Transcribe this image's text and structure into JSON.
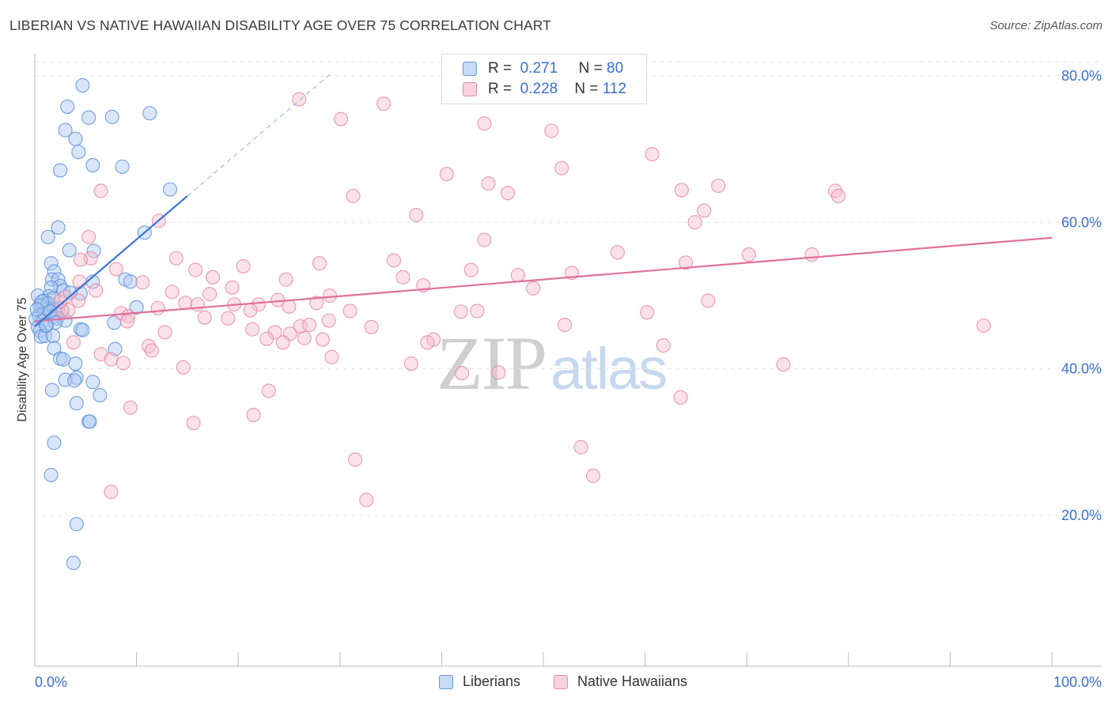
{
  "title": "LIBERIAN VS NATIVE HAWAIIAN DISABILITY AGE OVER 75 CORRELATION CHART",
  "source": "Source: ZipAtlas.com",
  "watermark": {
    "zip": "ZIP",
    "atlas": "atlas"
  },
  "legend_top": [
    {
      "r_label": "R =",
      "r_value": "0.271",
      "n_label": "N =",
      "n_value": "80"
    },
    {
      "r_label": "R =",
      "r_value": "0.228",
      "n_label": "N =",
      "n_value": "112"
    }
  ],
  "legend_bottom": [
    "Liberians",
    "Native Hawaiians"
  ],
  "colors": {
    "liberian_fill": "#aac8f2",
    "liberian_stroke": "#5a8fd8",
    "liberian_line": "#3b76d0",
    "hawaiian_fill": "#f6bccd",
    "hawaiian_stroke": "#e58aa8",
    "hawaiian_line": "#e0709a",
    "tick_text": "#3a6fd0",
    "grid": "#e5e5e5"
  },
  "chart_data": {
    "type": "scatter",
    "title": "LIBERIAN VS NATIVE HAWAIIAN DISABILITY AGE OVER 75 CORRELATION CHART",
    "xlabel": "",
    "ylabel": "Disability Age Over 75",
    "xlim": [
      0,
      100
    ],
    "ylim": [
      0,
      85
    ],
    "x_tick_labels": [
      "0.0%",
      "100.0%"
    ],
    "y_ticks": [
      20,
      40,
      60,
      80
    ],
    "y_tick_labels": [
      "20.0%",
      "40.0%",
      "60.0%",
      "80.0%"
    ],
    "grid": true,
    "series": [
      {
        "name": "Liberians",
        "r": 0.271,
        "n": 80,
        "trend": {
          "x": [
            0,
            15
          ],
          "y": [
            45.8,
            63.6
          ]
        },
        "trend_extended": {
          "x": [
            15,
            29
          ],
          "y": [
            63.6,
            80.2
          ]
        },
        "points": [
          [
            4.7,
            78.7
          ],
          [
            3.2,
            75.8
          ],
          [
            5.3,
            74.3
          ],
          [
            7.6,
            74.4
          ],
          [
            11.3,
            74.9
          ],
          [
            3.0,
            72.6
          ],
          [
            4.0,
            71.4
          ],
          [
            4.3,
            69.6
          ],
          [
            5.7,
            67.8
          ],
          [
            8.6,
            67.6
          ],
          [
            2.5,
            67.1
          ],
          [
            13.3,
            64.5
          ],
          [
            2.3,
            59.3
          ],
          [
            1.3,
            58.0
          ],
          [
            10.8,
            58.6
          ],
          [
            3.4,
            56.2
          ],
          [
            5.8,
            56.1
          ],
          [
            1.6,
            54.4
          ],
          [
            1.9,
            53.3
          ],
          [
            1.7,
            52.2
          ],
          [
            2.3,
            52.2
          ],
          [
            5.7,
            51.9
          ],
          [
            8.9,
            52.2
          ],
          [
            9.4,
            51.9
          ],
          [
            2.5,
            51.3
          ],
          [
            1.6,
            51.1
          ],
          [
            2.8,
            50.7
          ],
          [
            4.5,
            50.3
          ],
          [
            1.4,
            49.9
          ],
          [
            0.3,
            50.0
          ],
          [
            1.8,
            49.6
          ],
          [
            0.9,
            49.3
          ],
          [
            0.6,
            48.7
          ],
          [
            2.3,
            48.3
          ],
          [
            1.2,
            48.2
          ],
          [
            0.5,
            48.6
          ],
          [
            1.9,
            48.1
          ],
          [
            10.0,
            48.4
          ],
          [
            0.4,
            47.3
          ],
          [
            1.8,
            47.1
          ],
          [
            2.2,
            46.9
          ],
          [
            3.0,
            46.6
          ],
          [
            0.1,
            46.8
          ],
          [
            0.8,
            46.6
          ],
          [
            0.3,
            45.7
          ],
          [
            1.2,
            46.0
          ],
          [
            0.5,
            45.2
          ],
          [
            7.8,
            46.3
          ],
          [
            4.5,
            45.4
          ],
          [
            4.7,
            45.3
          ],
          [
            0.6,
            44.4
          ],
          [
            1.0,
            44.5
          ],
          [
            1.8,
            44.5
          ],
          [
            1.9,
            42.8
          ],
          [
            7.9,
            42.7
          ],
          [
            2.5,
            41.4
          ],
          [
            2.8,
            41.3
          ],
          [
            4.0,
            40.7
          ],
          [
            4.1,
            38.8
          ],
          [
            3.0,
            38.5
          ],
          [
            3.9,
            38.4
          ],
          [
            5.7,
            38.2
          ],
          [
            1.7,
            37.1
          ],
          [
            6.4,
            36.4
          ],
          [
            4.1,
            35.3
          ],
          [
            5.3,
            32.8
          ],
          [
            5.4,
            32.8
          ],
          [
            1.9,
            29.9
          ],
          [
            1.6,
            25.5
          ],
          [
            4.1,
            18.8
          ],
          [
            3.8,
            13.5
          ],
          [
            0.9,
            47.6
          ],
          [
            1.3,
            48.9
          ],
          [
            2.0,
            46.3
          ],
          [
            3.5,
            50.4
          ],
          [
            0.7,
            49.2
          ],
          [
            2.7,
            48.0
          ],
          [
            1.1,
            45.9
          ],
          [
            0.2,
            48.1
          ],
          [
            1.5,
            47.8
          ]
        ]
      },
      {
        "name": "Native Hawaiians",
        "r": 0.228,
        "n": 112,
        "trend": {
          "x": [
            0,
            100
          ],
          "y": [
            46.5,
            57.9
          ]
        },
        "points": [
          [
            26.0,
            76.8
          ],
          [
            34.3,
            76.2
          ],
          [
            30.1,
            74.1
          ],
          [
            44.2,
            73.5
          ],
          [
            50.8,
            72.5
          ],
          [
            60.7,
            69.3
          ],
          [
            51.8,
            67.4
          ],
          [
            40.5,
            66.6
          ],
          [
            44.6,
            65.3
          ],
          [
            46.5,
            64.0
          ],
          [
            31.3,
            63.6
          ],
          [
            63.6,
            64.4
          ],
          [
            67.2,
            65.0
          ],
          [
            78.7,
            64.3
          ],
          [
            79.0,
            63.6
          ],
          [
            6.5,
            64.3
          ],
          [
            65.8,
            61.6
          ],
          [
            37.5,
            61.0
          ],
          [
            12.2,
            60.2
          ],
          [
            64.9,
            60.0
          ],
          [
            5.3,
            58.0
          ],
          [
            44.2,
            57.6
          ],
          [
            57.3,
            55.9
          ],
          [
            70.2,
            55.6
          ],
          [
            76.4,
            55.6
          ],
          [
            5.5,
            55.1
          ],
          [
            13.9,
            55.1
          ],
          [
            4.5,
            54.9
          ],
          [
            35.3,
            54.8
          ],
          [
            28.0,
            54.4
          ],
          [
            64.0,
            54.5
          ],
          [
            20.5,
            54.0
          ],
          [
            15.8,
            53.5
          ],
          [
            42.9,
            53.5
          ],
          [
            8.0,
            53.6
          ],
          [
            47.5,
            52.8
          ],
          [
            52.8,
            53.1
          ],
          [
            17.5,
            52.5
          ],
          [
            24.7,
            52.2
          ],
          [
            36.2,
            52.5
          ],
          [
            10.6,
            51.8
          ],
          [
            4.4,
            51.9
          ],
          [
            38.2,
            51.4
          ],
          [
            19.4,
            51.1
          ],
          [
            49.0,
            51.0
          ],
          [
            13.5,
            50.5
          ],
          [
            17.2,
            50.2
          ],
          [
            29.0,
            50.0
          ],
          [
            3.0,
            49.8
          ],
          [
            4.3,
            49.3
          ],
          [
            23.9,
            49.4
          ],
          [
            27.7,
            49.0
          ],
          [
            14.8,
            49.0
          ],
          [
            16.0,
            48.8
          ],
          [
            19.6,
            48.8
          ],
          [
            22.0,
            48.8
          ],
          [
            25.0,
            48.5
          ],
          [
            66.2,
            49.3
          ],
          [
            12.1,
            48.3
          ],
          [
            8.5,
            47.6
          ],
          [
            21.2,
            48.0
          ],
          [
            31.0,
            47.9
          ],
          [
            41.9,
            47.8
          ],
          [
            43.5,
            47.9
          ],
          [
            60.2,
            47.7
          ],
          [
            2.7,
            47.9
          ],
          [
            3.3,
            48.0
          ],
          [
            9.2,
            47.2
          ],
          [
            16.7,
            47.0
          ],
          [
            19.0,
            46.9
          ],
          [
            28.9,
            46.6
          ],
          [
            9.1,
            46.5
          ],
          [
            26.1,
            45.8
          ],
          [
            27.0,
            46.0
          ],
          [
            33.1,
            45.7
          ],
          [
            52.1,
            46.0
          ],
          [
            93.3,
            45.9
          ],
          [
            21.4,
            45.4
          ],
          [
            12.8,
            45.0
          ],
          [
            23.6,
            45.0
          ],
          [
            25.1,
            44.8
          ],
          [
            26.5,
            44.2
          ],
          [
            28.3,
            44.0
          ],
          [
            22.8,
            44.1
          ],
          [
            24.4,
            43.6
          ],
          [
            39.2,
            44.0
          ],
          [
            38.6,
            43.6
          ],
          [
            3.8,
            43.6
          ],
          [
            11.2,
            43.1
          ],
          [
            61.8,
            43.2
          ],
          [
            29.2,
            41.6
          ],
          [
            11.5,
            42.5
          ],
          [
            6.5,
            42.0
          ],
          [
            7.5,
            41.3
          ],
          [
            8.7,
            40.8
          ],
          [
            37.0,
            40.7
          ],
          [
            14.6,
            40.2
          ],
          [
            73.6,
            40.6
          ],
          [
            42.0,
            39.4
          ],
          [
            45.6,
            39.5
          ],
          [
            23.0,
            37.0
          ],
          [
            63.5,
            36.1
          ],
          [
            9.4,
            34.7
          ],
          [
            21.5,
            33.7
          ],
          [
            15.6,
            32.6
          ],
          [
            53.7,
            29.3
          ],
          [
            31.5,
            27.6
          ],
          [
            54.9,
            25.4
          ],
          [
            32.6,
            22.1
          ],
          [
            7.5,
            23.2
          ],
          [
            2.5,
            49.2
          ],
          [
            6.0,
            50.7
          ]
        ]
      }
    ]
  }
}
